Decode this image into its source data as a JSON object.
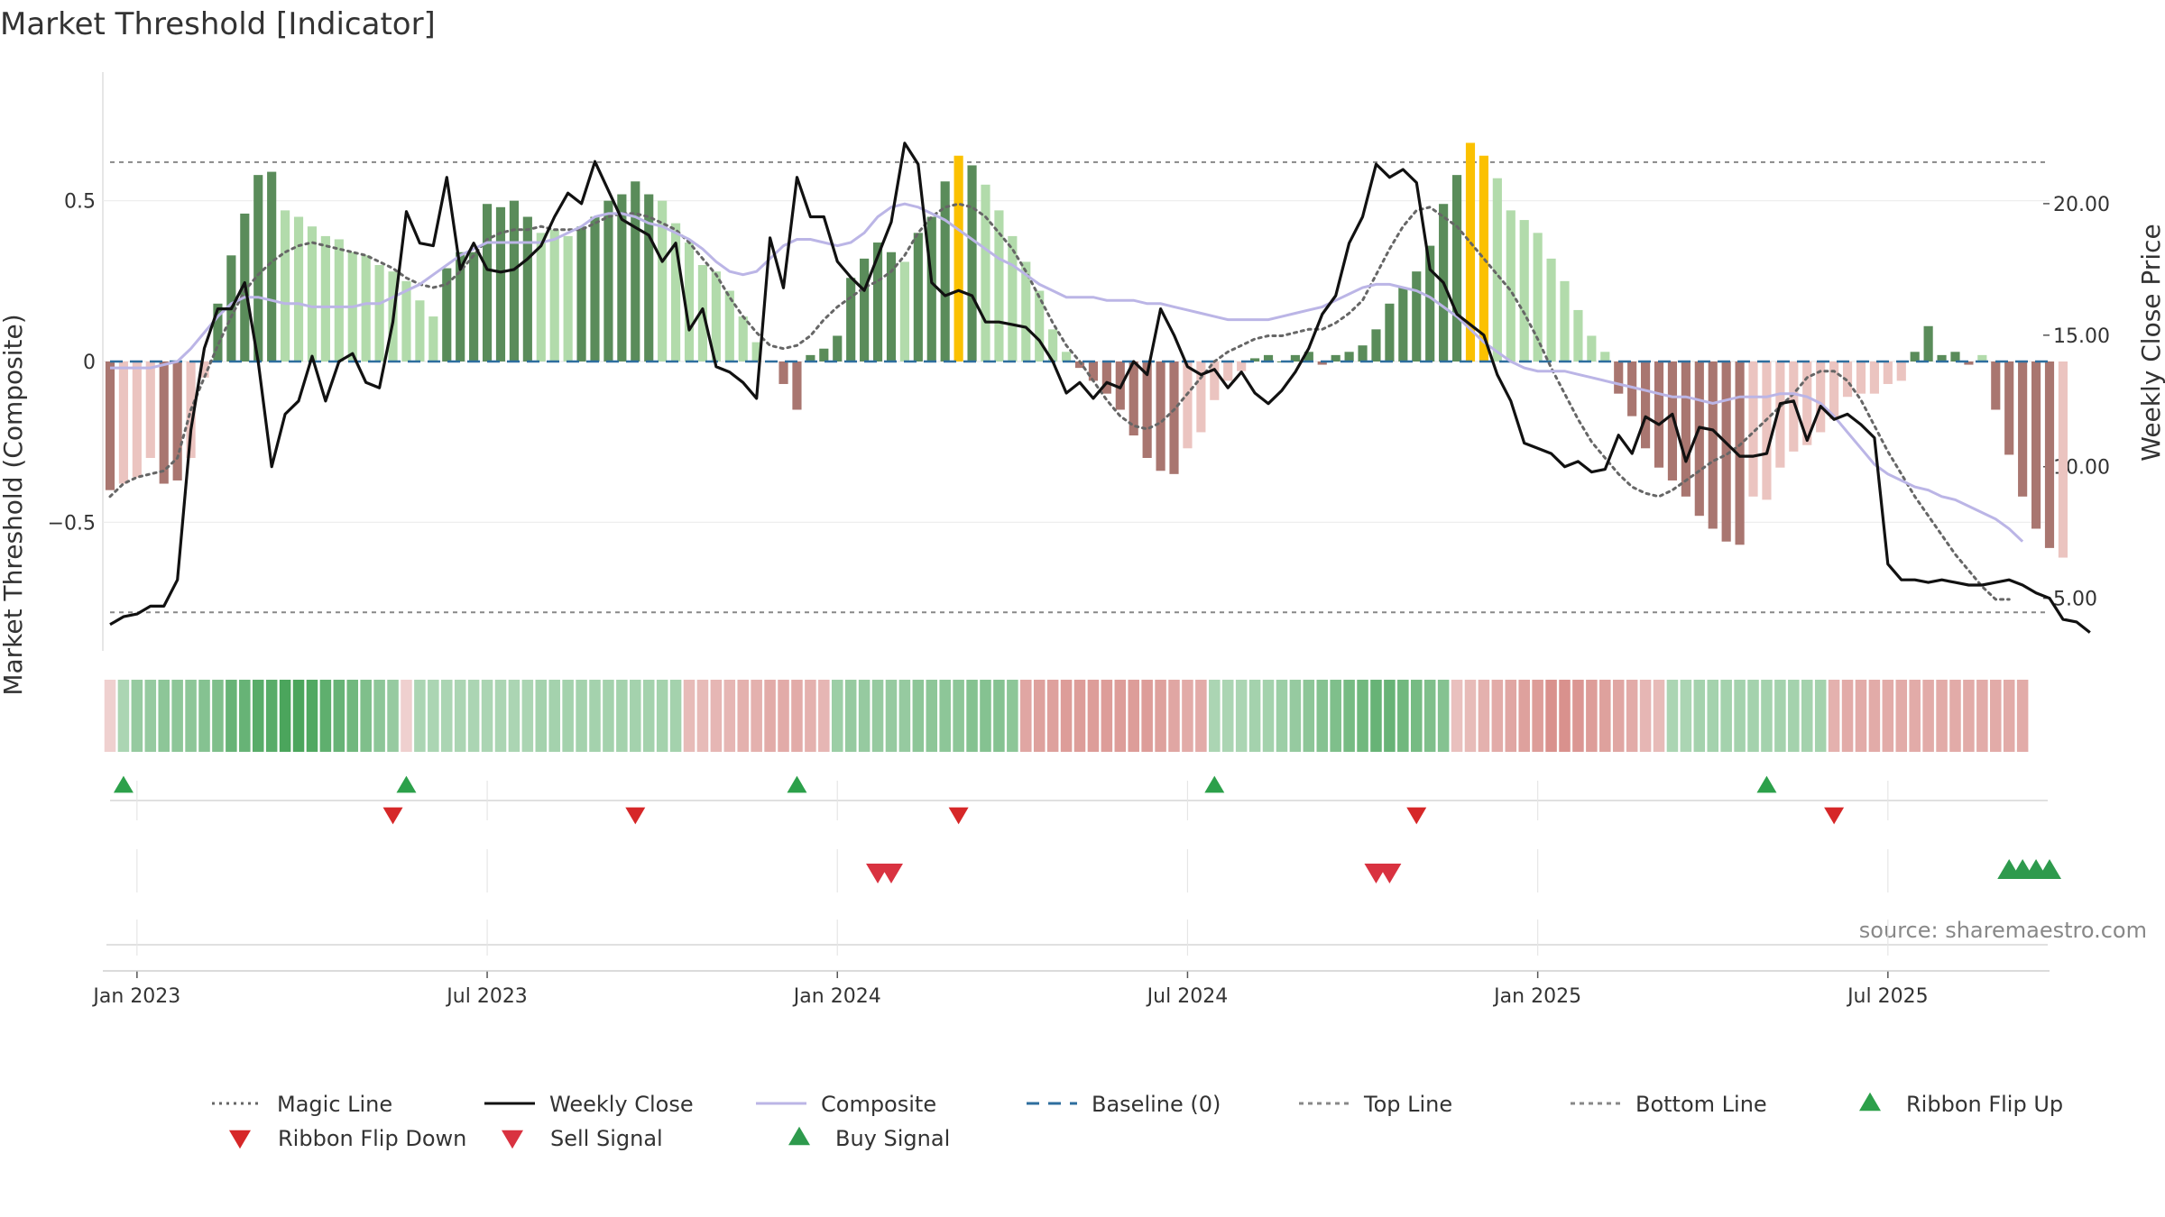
{
  "chart_data": {
    "type": "bar",
    "title": "Market Threshold [Indicator]",
    "ylabel_left": "Market Threshold (Composite)",
    "ylabel_right": "Weekly Close Price",
    "left_ylim": [
      -0.9,
      0.9
    ],
    "right_ylim": [
      3.0,
      25.0
    ],
    "left_ticks": [
      {
        "v": 0.5,
        "label": "0.5"
      },
      {
        "v": 0,
        "label": "0"
      },
      {
        "v": -0.5,
        "label": "−0.5"
      }
    ],
    "right_ticks": [
      {
        "v": 20,
        "label": "20.00"
      },
      {
        "v": 15,
        "label": "15.00"
      },
      {
        "v": 10,
        "label": "10.00"
      },
      {
        "v": 5,
        "label": "5.00"
      }
    ],
    "x_ticks": [
      {
        "week": 2,
        "label": "Jan 2023"
      },
      {
        "week": 28,
        "label": "Jul 2023"
      },
      {
        "week": 54,
        "label": "Jan 2024"
      },
      {
        "week": 80,
        "label": "Jul 2024"
      },
      {
        "week": 106,
        "label": "Jan 2025"
      },
      {
        "week": 132,
        "label": "Jul 2025"
      }
    ],
    "weeks": 145,
    "top_line": 0.62,
    "bottom_line": -0.78,
    "baseline": 0,
    "composite_bars": [
      -0.4,
      -0.38,
      -0.36,
      -0.3,
      -0.38,
      -0.37,
      -0.3,
      -0.05,
      0.18,
      0.33,
      0.46,
      0.58,
      0.59,
      0.47,
      0.45,
      0.42,
      0.39,
      0.38,
      0.34,
      0.33,
      0.3,
      0.28,
      0.25,
      0.19,
      0.14,
      0.29,
      0.34,
      0.34,
      0.49,
      0.48,
      0.5,
      0.45,
      0.4,
      0.41,
      0.39,
      0.42,
      0.45,
      0.5,
      0.52,
      0.56,
      0.52,
      0.5,
      0.43,
      0.37,
      0.3,
      0.28,
      0.22,
      0.14,
      0.06,
      0,
      -0.07,
      -0.15,
      0.02,
      0.04,
      0.08,
      0.26,
      0.32,
      0.37,
      0.34,
      0.31,
      0.4,
      0.45,
      0.56,
      0.64,
      0.61,
      0.55,
      0.47,
      0.39,
      0.31,
      0.22,
      0.1,
      0.03,
      -0.02,
      -0.06,
      -0.1,
      -0.15,
      -0.23,
      -0.3,
      -0.34,
      -0.35,
      -0.27,
      -0.22,
      -0.12,
      -0.06,
      -0.03,
      0.01,
      0.02,
      0,
      0.02,
      0.03,
      -0.01,
      0.02,
      0.03,
      0.05,
      0.1,
      0.18,
      0.23,
      0.28,
      0.36,
      0.49,
      0.58,
      0.68,
      0.64,
      0.57,
      0.47,
      0.44,
      0.4,
      0.32,
      0.25,
      0.16,
      0.08,
      0.03,
      -0.1,
      -0.17,
      -0.27,
      -0.33,
      -0.37,
      -0.42,
      -0.48,
      -0.52,
      -0.56,
      -0.57,
      -0.42,
      -0.43,
      -0.33,
      -0.28,
      -0.26,
      -0.22,
      -0.18,
      -0.11,
      -0.1,
      -0.1,
      -0.07,
      -0.06,
      0.03,
      0.11,
      0.02,
      0.03,
      -0.01,
      0.02,
      -0.15,
      -0.29,
      -0.42,
      -0.52,
      -0.58,
      -0.61
    ],
    "close_price": [
      4.0,
      4.3,
      4.4,
      4.7,
      4.7,
      5.7,
      11.4,
      14.5,
      16.0,
      16.0,
      17.0,
      14.0,
      10.0,
      12.0,
      12.5,
      14.2,
      12.5,
      14.0,
      14.3,
      13.2,
      13.0,
      15.5,
      19.7,
      18.5,
      18.4,
      21.0,
      17.5,
      18.5,
      17.5,
      17.4,
      17.5,
      17.9,
      18.4,
      19.5,
      20.4,
      20.0,
      21.6,
      20.5,
      19.4,
      19.1,
      18.8,
      17.8,
      18.5,
      15.2,
      16.0,
      13.8,
      13.6,
      13.2,
      12.6,
      18.7,
      16.8,
      21.0,
      19.5,
      19.5,
      17.8,
      17.2,
      16.7,
      18.0,
      19.3,
      22.3,
      21.5,
      17.0,
      16.5,
      16.7,
      16.5,
      15.5,
      15.5,
      15.4,
      15.3,
      14.8,
      14.0,
      12.8,
      13.2,
      12.6,
      13.2,
      13.0,
      14.0,
      13.5,
      16.0,
      15.0,
      13.8,
      13.5,
      13.7,
      13.0,
      13.6,
      12.8,
      12.4,
      12.9,
      13.6,
      14.5,
      15.8,
      16.5,
      18.5,
      19.5,
      21.5,
      21.0,
      21.3,
      20.8,
      17.5,
      17.0,
      15.8,
      15.4,
      15.0,
      13.5,
      12.5,
      10.9,
      10.7,
      10.5,
      10.0,
      10.2,
      9.8,
      9.9,
      11.2,
      10.5,
      11.9,
      11.6,
      12.0,
      10.2,
      11.5,
      11.4,
      10.9,
      10.4,
      10.4,
      10.5,
      12.4,
      12.5,
      11.0,
      12.3,
      11.8,
      12.0,
      11.6,
      11.1,
      6.3,
      5.7,
      5.7,
      5.6,
      5.7,
      5.6,
      5.5,
      5.5,
      5.6,
      5.7,
      5.5,
      5.2,
      5.0,
      4.2,
      4.1,
      3.7
    ],
    "composite_line": [
      -0.02,
      -0.02,
      -0.02,
      -0.02,
      -0.01,
      0.0,
      0.04,
      0.09,
      0.14,
      0.18,
      0.2,
      0.2,
      0.19,
      0.18,
      0.18,
      0.17,
      0.17,
      0.17,
      0.17,
      0.18,
      0.18,
      0.2,
      0.22,
      0.24,
      0.27,
      0.3,
      0.33,
      0.35,
      0.37,
      0.37,
      0.37,
      0.37,
      0.37,
      0.38,
      0.4,
      0.42,
      0.45,
      0.46,
      0.46,
      0.45,
      0.43,
      0.42,
      0.4,
      0.38,
      0.35,
      0.31,
      0.28,
      0.27,
      0.28,
      0.32,
      0.36,
      0.38,
      0.38,
      0.37,
      0.36,
      0.37,
      0.4,
      0.45,
      0.48,
      0.49,
      0.48,
      0.46,
      0.44,
      0.41,
      0.38,
      0.35,
      0.32,
      0.3,
      0.27,
      0.24,
      0.22,
      0.2,
      0.2,
      0.2,
      0.19,
      0.19,
      0.19,
      0.18,
      0.18,
      0.17,
      0.16,
      0.15,
      0.14,
      0.13,
      0.13,
      0.13,
      0.13,
      0.14,
      0.15,
      0.16,
      0.17,
      0.19,
      0.21,
      0.23,
      0.24,
      0.24,
      0.23,
      0.22,
      0.2,
      0.17,
      0.14,
      0.1,
      0.06,
      0.03,
      0.0,
      -0.02,
      -0.03,
      -0.03,
      -0.03,
      -0.04,
      -0.05,
      -0.06,
      -0.07,
      -0.08,
      -0.09,
      -0.1,
      -0.11,
      -0.11,
      -0.12,
      -0.13,
      -0.12,
      -0.11,
      -0.11,
      -0.11,
      -0.1,
      -0.1,
      -0.11,
      -0.13,
      -0.17,
      -0.22,
      -0.27,
      -0.32,
      -0.35,
      -0.37,
      -0.39,
      -0.4,
      -0.42,
      -0.43,
      -0.45,
      -0.47,
      -0.49,
      -0.52,
      -0.56
    ],
    "magic_line": [
      -0.42,
      -0.38,
      -0.36,
      -0.35,
      -0.34,
      -0.3,
      -0.15,
      -0.05,
      0.05,
      0.14,
      0.22,
      0.27,
      0.31,
      0.34,
      0.36,
      0.37,
      0.36,
      0.35,
      0.34,
      0.33,
      0.31,
      0.29,
      0.26,
      0.24,
      0.23,
      0.24,
      0.28,
      0.33,
      0.38,
      0.4,
      0.41,
      0.41,
      0.42,
      0.41,
      0.41,
      0.41,
      0.43,
      0.45,
      0.46,
      0.46,
      0.45,
      0.43,
      0.41,
      0.37,
      0.32,
      0.27,
      0.2,
      0.14,
      0.09,
      0.05,
      0.04,
      0.05,
      0.08,
      0.13,
      0.17,
      0.2,
      0.23,
      0.25,
      0.28,
      0.33,
      0.4,
      0.45,
      0.48,
      0.49,
      0.48,
      0.45,
      0.4,
      0.35,
      0.28,
      0.2,
      0.12,
      0.05,
      0.0,
      -0.06,
      -0.12,
      -0.17,
      -0.2,
      -0.21,
      -0.19,
      -0.15,
      -0.1,
      -0.05,
      0.0,
      0.03,
      0.05,
      0.07,
      0.08,
      0.08,
      0.09,
      0.1,
      0.1,
      0.12,
      0.15,
      0.19,
      0.27,
      0.35,
      0.42,
      0.47,
      0.48,
      0.45,
      0.42,
      0.37,
      0.32,
      0.27,
      0.22,
      0.15,
      0.07,
      -0.02,
      -0.1,
      -0.18,
      -0.25,
      -0.3,
      -0.35,
      -0.39,
      -0.41,
      -0.42,
      -0.4,
      -0.37,
      -0.34,
      -0.31,
      -0.29,
      -0.26,
      -0.22,
      -0.18,
      -0.14,
      -0.1,
      -0.05,
      -0.03,
      -0.03,
      -0.06,
      -0.12,
      -0.2,
      -0.28,
      -0.35,
      -0.42,
      -0.48,
      -0.54,
      -0.6,
      -0.65,
      -0.7,
      -0.74,
      -0.74
    ],
    "ribbon_strength": [
      -0.2,
      0.3,
      0.45,
      0.45,
      0.5,
      0.5,
      0.5,
      0.55,
      0.6,
      0.75,
      0.75,
      0.85,
      0.85,
      0.95,
      0.95,
      0.9,
      0.8,
      0.75,
      0.7,
      0.6,
      0.5,
      0.45,
      -0.2,
      0.3,
      0.3,
      0.3,
      0.3,
      0.3,
      0.3,
      0.3,
      0.3,
      0.3,
      0.35,
      0.35,
      0.35,
      0.35,
      0.35,
      0.35,
      0.35,
      0.35,
      0.35,
      0.35,
      0.35,
      -0.4,
      -0.4,
      -0.45,
      -0.45,
      -0.5,
      -0.5,
      -0.55,
      -0.55,
      -0.55,
      -0.5,
      -0.45,
      0.4,
      0.45,
      0.45,
      0.45,
      0.45,
      0.45,
      0.5,
      0.5,
      0.5,
      0.5,
      0.55,
      0.55,
      0.55,
      0.5,
      -0.6,
      -0.65,
      -0.65,
      -0.7,
      -0.7,
      -0.7,
      -0.7,
      -0.7,
      -0.7,
      -0.7,
      -0.65,
      -0.6,
      -0.55,
      -0.55,
      0.3,
      0.3,
      0.3,
      0.35,
      0.35,
      0.4,
      0.45,
      0.5,
      0.55,
      0.6,
      0.65,
      0.7,
      0.75,
      0.75,
      0.7,
      0.65,
      0.6,
      0.55,
      -0.35,
      -0.4,
      -0.5,
      -0.55,
      -0.6,
      -0.65,
      -0.7,
      -0.8,
      -0.8,
      -0.75,
      -0.7,
      -0.65,
      -0.6,
      -0.55,
      -0.45,
      -0.4,
      0.3,
      0.3,
      0.35,
      0.35,
      0.35,
      0.35,
      0.35,
      0.35,
      0.35,
      0.35,
      0.35,
      0.35,
      -0.5,
      -0.55,
      -0.55,
      -0.55,
      -0.55,
      -0.55,
      -0.55,
      -0.55,
      -0.55,
      -0.55,
      -0.55,
      -0.55,
      -0.55,
      -0.55,
      -0.55
    ],
    "ribbon_flip_up_weeks": [
      1,
      22,
      51,
      82,
      123
    ],
    "ribbon_flip_down_weeks": [
      21,
      39,
      63,
      97,
      128
    ],
    "sell_signal_weeks": [
      57,
      58,
      94,
      95
    ],
    "buy_signal_weeks": [
      141,
      142,
      143,
      144
    ],
    "source_note": "source: sharemaestro.com",
    "legend": [
      "Magic Line",
      "Weekly Close",
      "Composite",
      "Baseline (0)",
      "Top Line",
      "Bottom Line",
      "Ribbon Flip Up",
      "Ribbon Flip Down",
      "Sell Signal",
      "Buy Signal"
    ]
  },
  "colors": {
    "bar_dark_green": "#5a8c5a",
    "bar_light_green": "#b2dbab",
    "bar_dark_red": "#a97670",
    "bar_light_red": "#ebc4c0",
    "bar_extreme": "#fbc100",
    "close_line": "#111111",
    "composite_line": "#bbb5e6",
    "magic_line": "#666666",
    "baseline": "#2e6e9e",
    "guide": "#888888",
    "flip_up": "#2ca04a",
    "flip_down": "#d62728",
    "sell_signal": "#d93240",
    "buy_signal": "#2e9a4d"
  }
}
